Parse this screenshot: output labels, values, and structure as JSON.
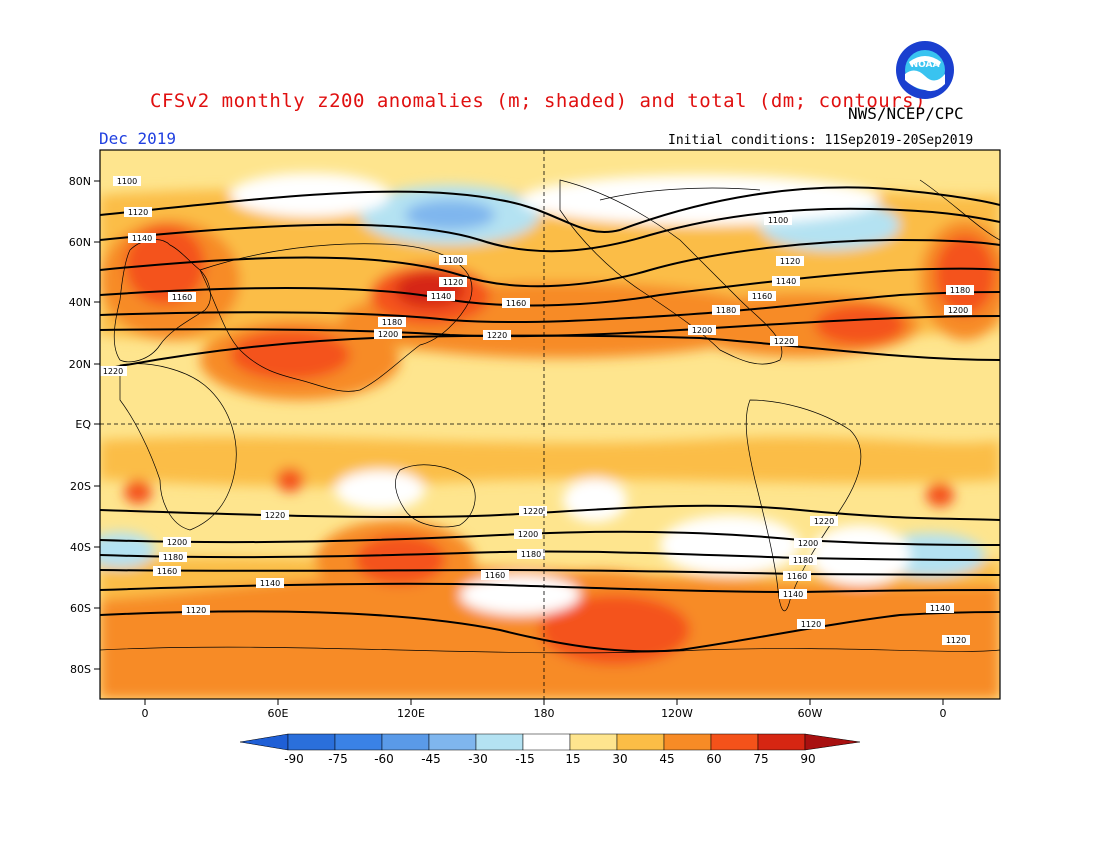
{
  "header": {
    "title": "CFSv2 monthly z200 anomalies (m; shaded) and total (dm; contours)",
    "agency": "NWS/NCEP/CPC",
    "month": "Dec 2019",
    "initial_conditions": "Initial conditions: 11Sep2019-20Sep2019",
    "logo_text": "NOAA"
  },
  "axes": {
    "lat_labels": [
      "80N",
      "60N",
      "40N",
      "20N",
      "EQ",
      "20S",
      "40S",
      "60S",
      "80S"
    ],
    "lon_labels": [
      "0",
      "60E",
      "120E",
      "180",
      "120W",
      "60W",
      "0"
    ]
  },
  "colorbar": {
    "labels": [
      "-90",
      "-75",
      "-60",
      "-45",
      "-30",
      "-15",
      "15",
      "30",
      "45",
      "60",
      "75",
      "90"
    ],
    "colors": [
      "#2a6fdb",
      "#3a82e6",
      "#5a9ae8",
      "#7fb6ee",
      "#b4e2f2",
      "#ffffff",
      "#fee58e",
      "#fbbd46",
      "#f78b26",
      "#f4521a",
      "#d62612",
      "#a81010"
    ]
  },
  "contour_labels": [
    "1100",
    "1120",
    "1140",
    "1160",
    "1180",
    "1200",
    "1220",
    "1100",
    "1120",
    "1140",
    "1160",
    "1180",
    "1200",
    "1220",
    "1100",
    "1120",
    "1140",
    "1160",
    "1180",
    "1200",
    "1220",
    "1220",
    "1200",
    "1180",
    "1160",
    "1140",
    "1120",
    "1220",
    "1200",
    "1180",
    "1160",
    "1140",
    "1120",
    "1220",
    "1200",
    "1180",
    "1160",
    "1140",
    "1120"
  ]
}
